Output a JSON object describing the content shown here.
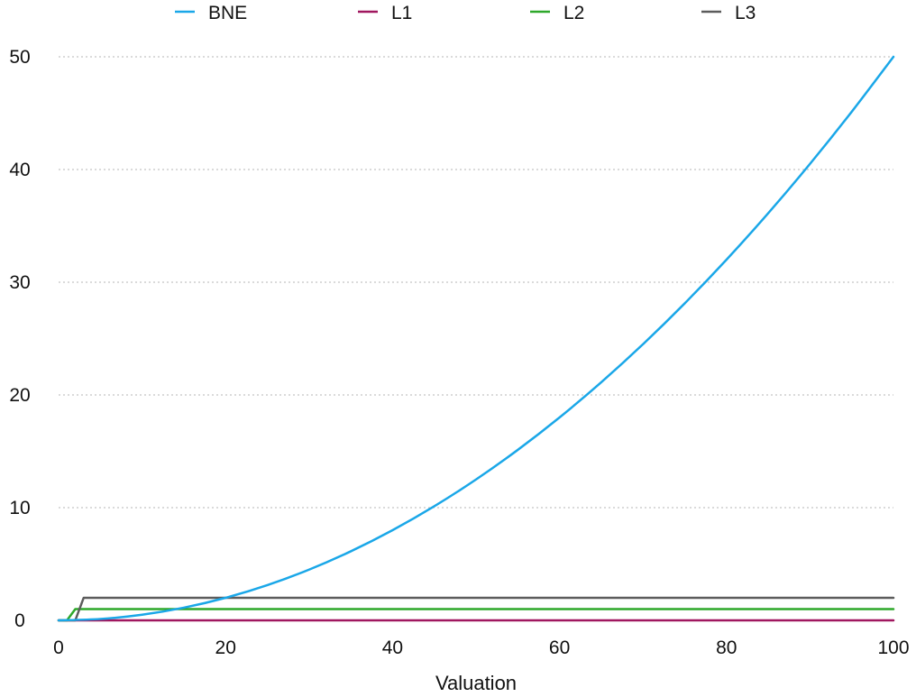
{
  "chart_data": {
    "type": "line",
    "title": "",
    "xlabel": "Valuation",
    "ylabel": "",
    "xlim": [
      0,
      100
    ],
    "ylim": [
      0,
      50
    ],
    "xticks": [
      0,
      20,
      40,
      60,
      80,
      100
    ],
    "yticks": [
      0,
      10,
      20,
      30,
      40,
      50
    ],
    "grid": "horizontal-dotted",
    "legend_position": "top",
    "series": [
      {
        "name": "BNE",
        "color": "#1aa7e8",
        "x": [
          0,
          5,
          10,
          15,
          20,
          25,
          30,
          35,
          40,
          45,
          50,
          55,
          60,
          65,
          70,
          75,
          80,
          85,
          90,
          95,
          100
        ],
        "y": [
          0,
          0.125,
          0.5,
          1.125,
          2,
          3.125,
          4.5,
          6.125,
          8,
          10.125,
          12.5,
          15.125,
          18,
          21.125,
          24.5,
          28.125,
          32,
          36.125,
          40.5,
          45.125,
          50
        ]
      },
      {
        "name": "L1",
        "color": "#a0175f",
        "x": [
          0,
          100
        ],
        "y": [
          0,
          0
        ]
      },
      {
        "name": "L2",
        "color": "#2ea82a",
        "x": [
          0,
          1,
          2,
          100
        ],
        "y": [
          0,
          0,
          1,
          1
        ]
      },
      {
        "name": "L3",
        "color": "#5c5c5c",
        "x": [
          0,
          2,
          3,
          100
        ],
        "y": [
          0,
          0,
          2,
          2
        ]
      }
    ]
  }
}
